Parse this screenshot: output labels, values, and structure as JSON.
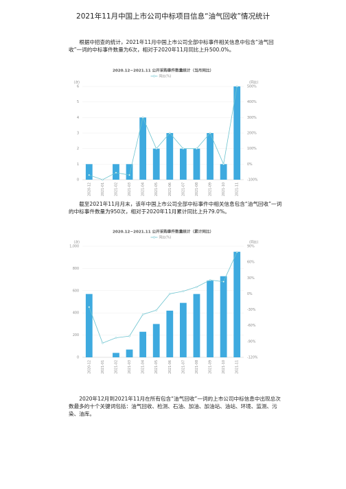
{
  "title": "2021年11月中国上市公司中标项目信息“油气回收”情况统计",
  "paragraphs": [
    "根据中招查的统计，2021年11月中国上市公司全部中标事件相关信息中包含“油气回收”一词的中标事件数量为6次，相对于2020年11月同比上升500.0%。",
    "截至2021年11月月末，该年中国上市公司全部中标事件中相关信息包含“油气回收”一词的中标事件数量为950次，相对于2020年11月累计同比上升79.0%。",
    "2020年12月到2021年11月在所有包含“油气回收”一词的上市公司中标信息中出现总次数最多的十个关键词包括：油气回收、检测、石油、加油、加油站、油站、环境、监测、污染、油库。"
  ],
  "chart_data": [
    {
      "type": "bar",
      "title": "2020.12~2021.11 公开采购事件数量统计（当月同比）",
      "y_label": "(次)",
      "y2_label": "(同比)",
      "categories": [
        "2020-12",
        "2021-01",
        "2021-02",
        "2021-03",
        "2021-04",
        "2021-05",
        "2021-06",
        "2021-07",
        "2021-08",
        "2021-09",
        "2021-10",
        "2021-11"
      ],
      "series": [
        {
          "color": "#3eaadf",
          "values": [
            1,
            0,
            1,
            1,
            4,
            2,
            3,
            2,
            2,
            3,
            1,
            6
          ]
        },
        {
          "name": "同比(%)",
          "type": "line",
          "axis": "y2",
          "color": "#6cc3cf",
          "values": [
            -70,
            -100,
            -55,
            -70,
            300,
            100,
            200,
            100,
            100,
            200,
            0,
            500
          ]
        }
      ],
      "ylim": [
        0,
        6
      ],
      "yticks": [
        0,
        1,
        2,
        3,
        4,
        5,
        6
      ],
      "y2lim": [
        -100,
        500
      ],
      "y2ticks": [
        {
          "value": -100,
          "label": "-100%"
        },
        {
          "value": 0,
          "label": "0%"
        },
        {
          "value": 100,
          "label": "100%"
        },
        {
          "value": 200,
          "label": "200%"
        },
        {
          "value": 300,
          "label": "300%"
        },
        {
          "value": 400,
          "label": "400%"
        },
        {
          "value": 500,
          "label": "500%"
        }
      ],
      "grid": true
    },
    {
      "type": "bar",
      "title": "2020.12~2021.11 公开采购事件数量统计（累计同比）",
      "y_label": "(次)",
      "y2_label": "(同比)",
      "categories": [
        "2020-12",
        "2021-01",
        "2021-02",
        "2021-03",
        "2021-04",
        "2021-05",
        "2021-06",
        "2021-07",
        "2021-08",
        "2021-09",
        "2021-10",
        "2021-11"
      ],
      "series": [
        {
          "color": "#3eaadf",
          "values": [
            570,
            0,
            40,
            70,
            230,
            300,
            420,
            490,
            570,
            690,
            730,
            950
          ]
        },
        {
          "name": "同比(%)",
          "type": "line",
          "axis": "y2",
          "color": "#6cc3cf",
          "values": [
            -25,
            -93,
            -83,
            -80,
            -39,
            -31,
            0,
            5,
            13,
            26,
            23,
            79
          ]
        }
      ],
      "ylim": [
        0,
        1000
      ],
      "yticks": [
        0,
        200,
        400,
        600,
        800,
        {
          "value": 1000,
          "label": "1,000"
        }
      ],
      "y2lim": [
        -120,
        90
      ],
      "y2ticks": [
        {
          "value": -120,
          "label": "-120%"
        },
        {
          "value": -90,
          "label": "-90%"
        },
        {
          "value": -60,
          "label": "-60%"
        },
        {
          "value": -30,
          "label": "-30%"
        },
        {
          "value": 0,
          "label": "0%"
        },
        {
          "value": 30,
          "label": "30%"
        },
        {
          "value": 60,
          "label": "60%"
        },
        {
          "value": 90,
          "label": "90%"
        }
      ],
      "grid": true
    }
  ]
}
